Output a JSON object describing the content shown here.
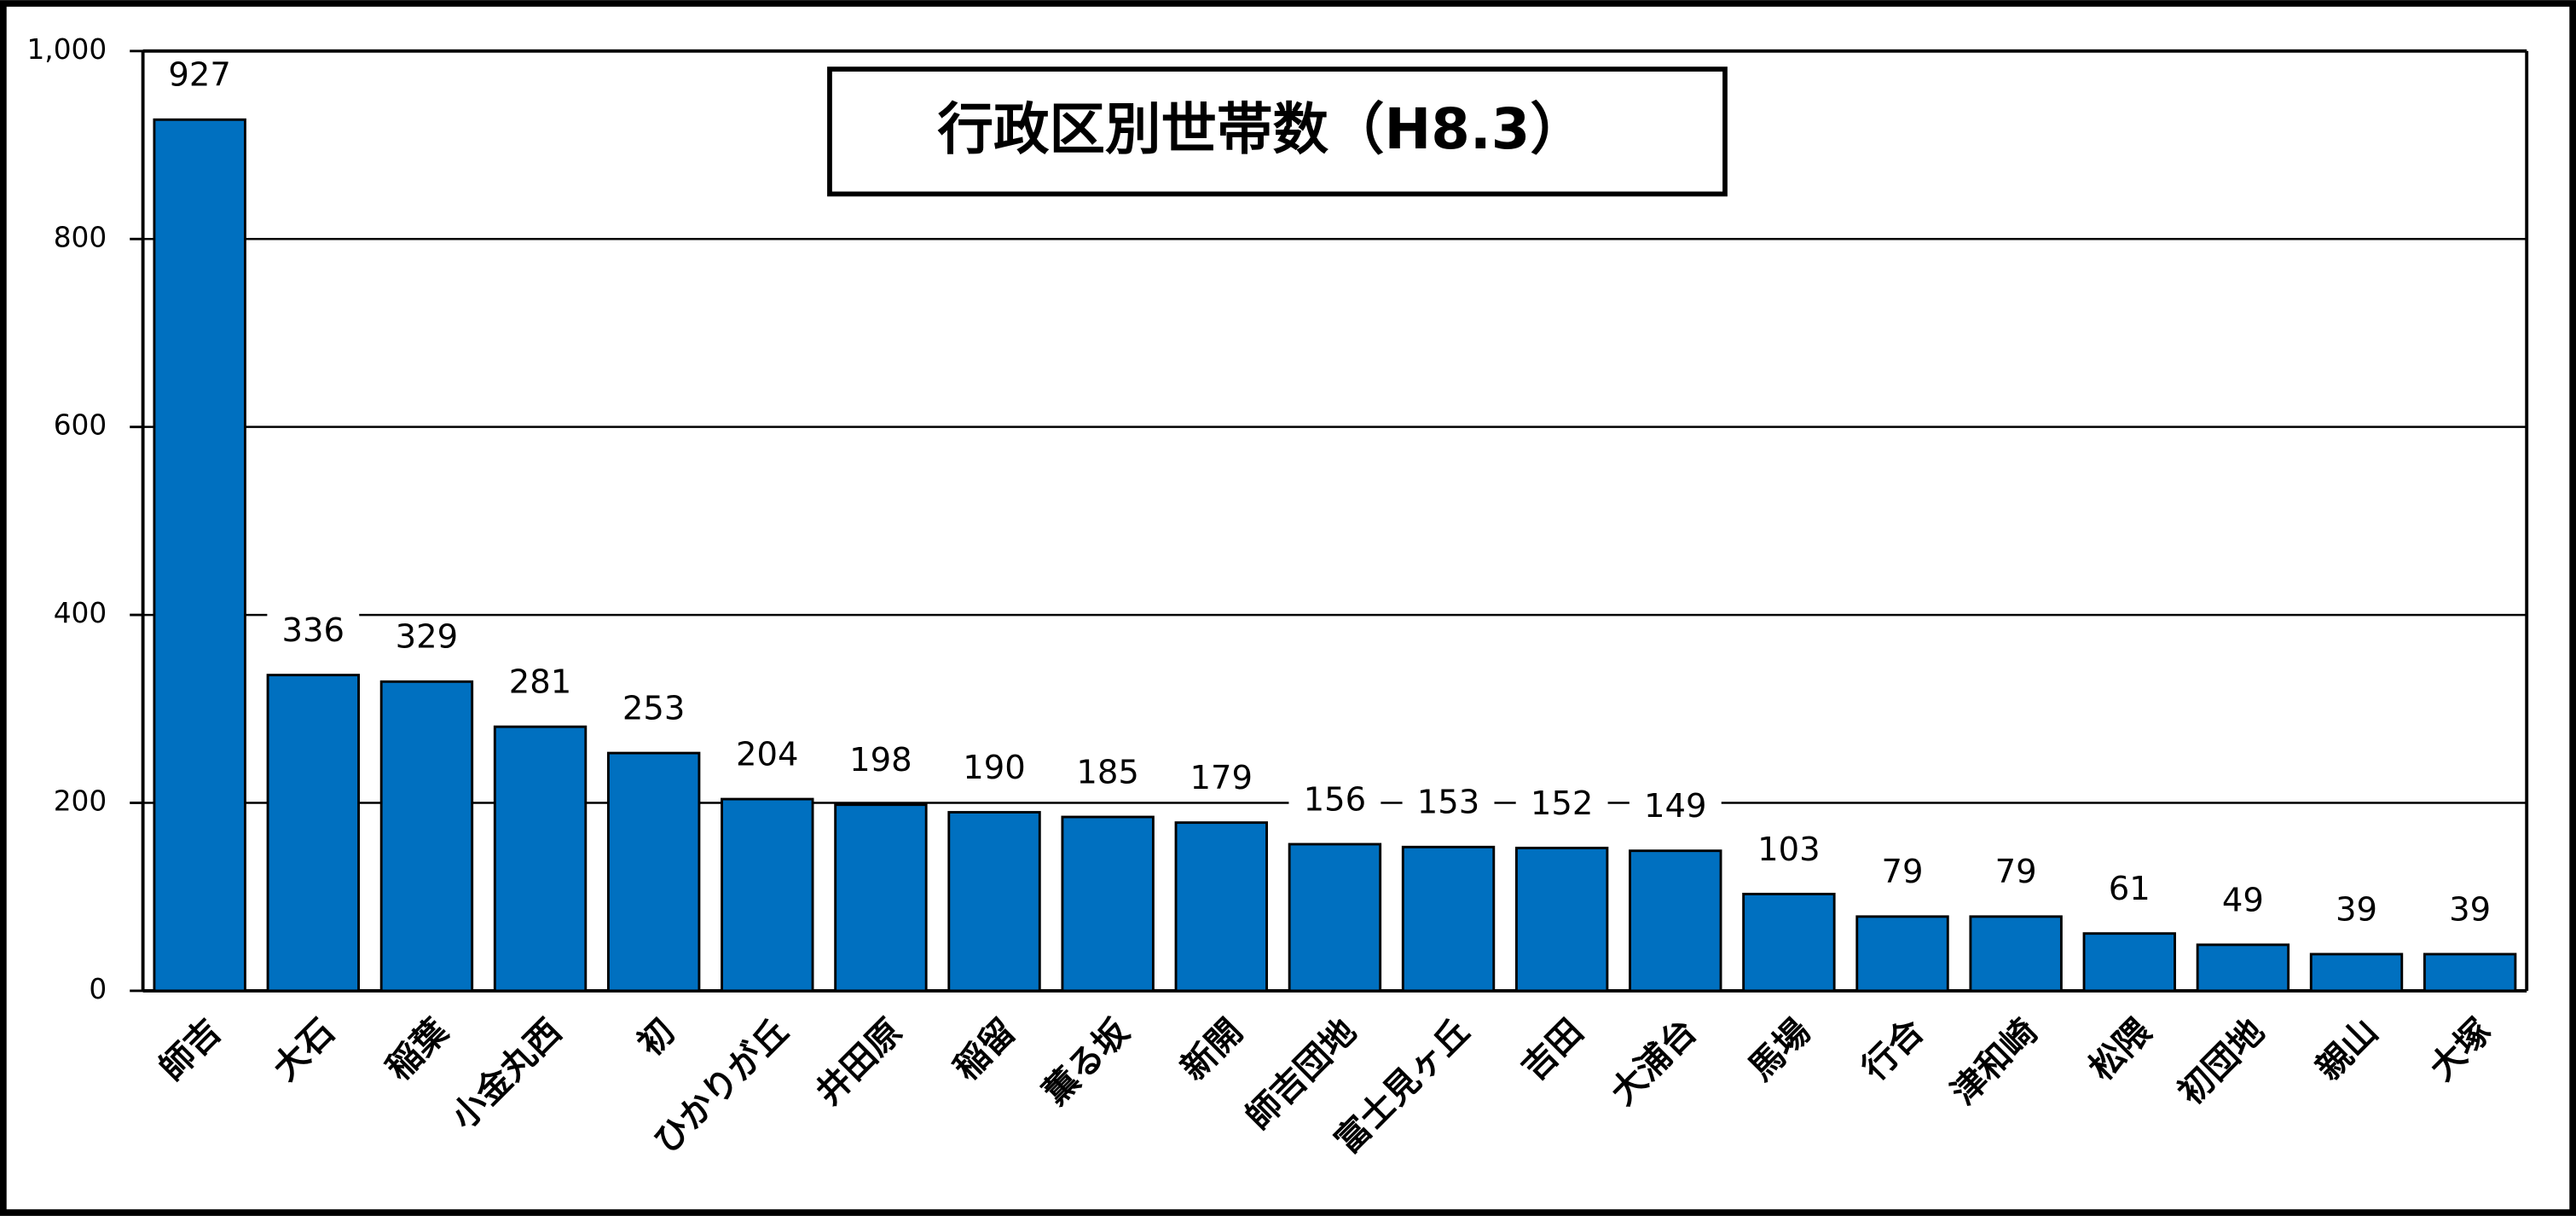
{
  "chart_data": {
    "type": "bar",
    "title": "行政区別世帯数（H8.3）",
    "categories": [
      "師吉",
      "大石",
      "稲葉",
      "小金丸西",
      "初",
      "ひかりが丘",
      "井田原",
      "稲留",
      "薫る坂",
      "新開",
      "師吉団地",
      "富士見ヶ丘",
      "吉田",
      "大浦台",
      "馬場",
      "行合",
      "津和崎",
      "松隈",
      "初団地",
      "親山",
      "大塚"
    ],
    "values": [
      927,
      336,
      329,
      281,
      253,
      204,
      198,
      190,
      185,
      179,
      156,
      153,
      152,
      149,
      103,
      79,
      79,
      61,
      49,
      39,
      39
    ],
    "color": "#0070c0",
    "ylim": [
      0,
      1000
    ],
    "yticks": [
      0,
      200,
      400,
      600,
      800,
      {
        "value": 1000,
        "label": "1,000"
      }
    ],
    "grid": true
  }
}
